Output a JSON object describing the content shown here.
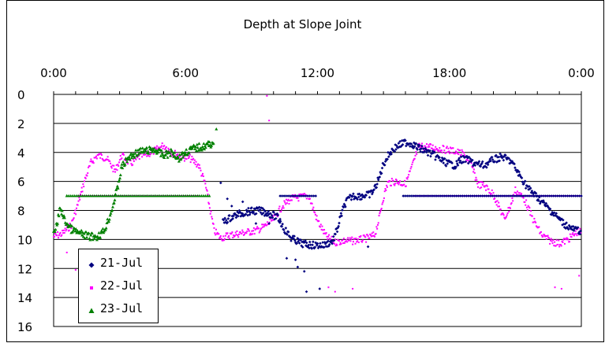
{
  "chart_data": {
    "type": "scatter",
    "title": "Depth at Slope Joint",
    "xlabel": "",
    "ylabel": "",
    "x_ticks": [
      "0:00",
      "6:00",
      "12:00",
      "18:00",
      "0:00"
    ],
    "y_ticks": [
      "0",
      "2",
      "4",
      "6",
      "8",
      "10",
      "12",
      "14",
      "16"
    ],
    "xlim": [
      0,
      24
    ],
    "ylim": [
      0,
      16
    ],
    "y_inverted": true,
    "grid": "horizontal",
    "legend_position": "bottom-left",
    "series": [
      {
        "name": "21-Jul",
        "color": "#000080",
        "marker": "diamond",
        "segments": [
          [
            [
              7.7,
              8.8
            ],
            [
              8.3,
              8.3
            ],
            [
              8.8,
              8.1
            ],
            [
              9.3,
              8.0
            ],
            [
              9.8,
              8.2
            ],
            [
              10.2,
              8.5
            ],
            [
              10.5,
              9.3
            ],
            [
              10.8,
              9.9
            ],
            [
              11.3,
              10.3
            ],
            [
              11.8,
              10.4
            ],
            [
              12.3,
              10.4
            ],
            [
              12.7,
              10.1
            ],
            [
              12.9,
              9.3
            ],
            [
              13.1,
              8.2
            ],
            [
              13.3,
              7.4
            ],
            [
              13.6,
              7.0
            ],
            [
              14.0,
              7.0
            ],
            [
              14.4,
              6.9
            ],
            [
              14.6,
              6.5
            ],
            [
              14.8,
              5.8
            ],
            [
              15.0,
              4.8
            ],
            [
              15.3,
              4.0
            ],
            [
              15.6,
              3.6
            ],
            [
              16.0,
              3.3
            ],
            [
              16.3,
              3.4
            ],
            [
              16.6,
              3.7
            ],
            [
              16.9,
              3.9
            ],
            [
              17.3,
              4.2
            ],
            [
              17.7,
              4.6
            ],
            [
              18.0,
              4.8
            ],
            [
              18.3,
              4.9
            ],
            [
              18.5,
              4.5
            ],
            [
              18.8,
              4.5
            ],
            [
              19.2,
              4.8
            ],
            [
              19.6,
              4.9
            ],
            [
              20.0,
              4.5
            ],
            [
              20.4,
              4.3
            ],
            [
              20.8,
              4.6
            ],
            [
              21.2,
              5.6
            ],
            [
              21.6,
              6.5
            ],
            [
              22.0,
              7.1
            ],
            [
              22.4,
              7.7
            ],
            [
              22.8,
              8.3
            ],
            [
              23.2,
              8.9
            ],
            [
              23.6,
              9.3
            ],
            [
              24.0,
              9.4
            ]
          ]
        ],
        "flat": {
          "value": 7.0,
          "ranges": [
            [
              10.3,
              12.0
            ],
            [
              15.9,
              24.0
            ]
          ]
        },
        "outliers": [
          [
            7.6,
            6.1
          ],
          [
            7.9,
            7.2
          ],
          [
            8.1,
            7.7
          ],
          [
            8.6,
            7.4
          ],
          [
            9.2,
            8.9
          ],
          [
            9.8,
            8.9
          ],
          [
            10.3,
            8.6
          ],
          [
            10.6,
            11.3
          ],
          [
            11.0,
            11.4
          ],
          [
            11.1,
            11.9
          ],
          [
            11.4,
            12.2
          ],
          [
            11.5,
            13.6
          ],
          [
            12.1,
            13.4
          ],
          [
            14.3,
            10.5
          ]
        ]
      },
      {
        "name": "22-Jul",
        "color": "#ff00ff",
        "marker": "square",
        "segments": [
          [
            [
              0.0,
              9.8
            ],
            [
              0.4,
              9.6
            ],
            [
              0.8,
              9.0
            ],
            [
              1.1,
              7.6
            ],
            [
              1.4,
              6.0
            ],
            [
              1.7,
              4.7
            ],
            [
              2.0,
              4.2
            ],
            [
              2.4,
              4.4
            ],
            [
              2.8,
              5.3
            ],
            [
              3.1,
              4.2
            ],
            [
              3.5,
              4.8
            ],
            [
              3.9,
              4.3
            ],
            [
              4.3,
              4.1
            ],
            [
              4.7,
              3.8
            ],
            [
              5.0,
              3.5
            ],
            [
              5.4,
              4.0
            ],
            [
              5.8,
              4.3
            ],
            [
              6.2,
              4.4
            ],
            [
              6.6,
              4.9
            ],
            [
              6.9,
              6.2
            ],
            [
              7.1,
              7.8
            ],
            [
              7.3,
              9.4
            ],
            [
              7.6,
              9.9
            ],
            [
              8.0,
              9.7
            ],
            [
              8.4,
              9.6
            ],
            [
              8.8,
              9.5
            ],
            [
              9.2,
              9.4
            ],
            [
              9.6,
              9.1
            ],
            [
              10.0,
              8.6
            ],
            [
              10.4,
              7.7
            ],
            [
              10.8,
              7.2
            ],
            [
              11.2,
              7.1
            ],
            [
              11.6,
              7.0
            ],
            [
              12.0,
              8.7
            ],
            [
              12.4,
              9.8
            ],
            [
              12.8,
              10.2
            ],
            [
              13.2,
              10.1
            ],
            [
              13.6,
              10.1
            ],
            [
              14.0,
              10.0
            ],
            [
              14.3,
              9.9
            ],
            [
              14.6,
              9.7
            ],
            [
              14.8,
              8.6
            ],
            [
              15.0,
              7.1
            ],
            [
              15.2,
              6.1
            ],
            [
              15.6,
              6.0
            ],
            [
              16.0,
              6.2
            ],
            [
              16.3,
              5.0
            ],
            [
              16.6,
              3.6
            ],
            [
              17.0,
              3.6
            ],
            [
              17.4,
              3.7
            ],
            [
              17.8,
              3.8
            ],
            [
              18.2,
              3.9
            ],
            [
              18.6,
              4.1
            ],
            [
              19.0,
              4.9
            ],
            [
              19.3,
              6.2
            ],
            [
              19.6,
              6.3
            ],
            [
              20.0,
              6.9
            ],
            [
              20.3,
              7.9
            ],
            [
              20.5,
              8.6
            ],
            [
              20.8,
              7.6
            ],
            [
              21.0,
              6.6
            ],
            [
              21.4,
              7.2
            ],
            [
              21.8,
              8.6
            ],
            [
              22.2,
              9.7
            ],
            [
              22.6,
              10.1
            ],
            [
              23.0,
              10.3
            ],
            [
              23.4,
              10.0
            ],
            [
              23.8,
              9.5
            ],
            [
              24.0,
              9.5
            ]
          ]
        ],
        "flat": {
          "value": 7.0,
          "ranges": [
            [
              1.1,
              6.6
            ],
            [
              16.4,
              24.0
            ]
          ]
        },
        "outliers": [
          [
            9.7,
            0.1
          ],
          [
            9.8,
            1.8
          ],
          [
            0.6,
            10.9
          ],
          [
            1.0,
            12.1
          ],
          [
            12.5,
            13.3
          ],
          [
            12.8,
            13.6
          ],
          [
            13.6,
            13.4
          ],
          [
            22.8,
            13.3
          ],
          [
            23.1,
            13.4
          ],
          [
            23.9,
            12.5
          ],
          [
            23.9,
            7.0
          ]
        ]
      },
      {
        "name": "23-Jul",
        "color": "#008000",
        "marker": "triangle",
        "segments": [
          [
            [
              0.0,
              9.7
            ],
            [
              0.15,
              9.0
            ],
            [
              0.3,
              7.8
            ],
            [
              0.5,
              8.7
            ],
            [
              0.8,
              9.3
            ],
            [
              1.2,
              9.6
            ],
            [
              1.6,
              9.8
            ],
            [
              2.0,
              9.8
            ],
            [
              2.3,
              9.4
            ],
            [
              2.6,
              8.2
            ],
            [
              2.9,
              6.5
            ],
            [
              3.1,
              5.0
            ],
            [
              3.4,
              4.4
            ],
            [
              3.8,
              4.0
            ],
            [
              4.2,
              3.9
            ],
            [
              4.6,
              3.8
            ],
            [
              5.0,
              4.2
            ],
            [
              5.4,
              4.0
            ],
            [
              5.7,
              4.4
            ],
            [
              6.0,
              4.0
            ],
            [
              6.4,
              3.7
            ],
            [
              6.8,
              3.6
            ],
            [
              7.0,
              3.5
            ],
            [
              7.3,
              3.3
            ]
          ]
        ],
        "flat": {
          "value": 7.0,
          "ranges": [
            [
              0.6,
              7.1
            ]
          ]
        },
        "outliers": [
          [
            0.6,
            7.0
          ],
          [
            7.4,
            2.4
          ]
        ]
      }
    ]
  }
}
